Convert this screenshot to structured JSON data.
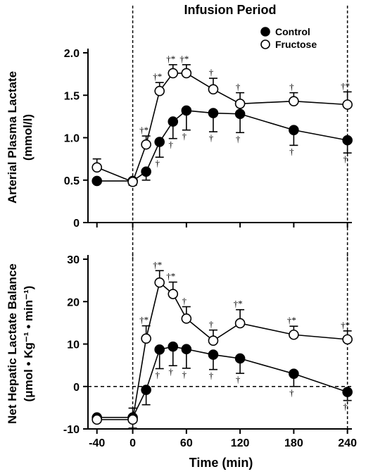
{
  "chart_data": [
    {
      "type": "line",
      "title": "Infusion Period",
      "xlabel": "",
      "ylabel": [
        "Arterial Plasma Lactate",
        "(mmol/l)"
      ],
      "xlim": [
        -50,
        245
      ],
      "ylim": [
        0,
        2.0
      ],
      "xticks": [
        -40,
        0,
        60,
        120,
        180,
        240
      ],
      "yticks": [
        0,
        0.5,
        1.0,
        1.5,
        2.0
      ],
      "ytick_labels": [
        "0",
        "0.5",
        "1.0",
        "1.5",
        "2.0"
      ],
      "grid": false,
      "legend_position": "top-right",
      "vlines": [
        0,
        240
      ],
      "series": [
        {
          "name": "Control",
          "marker": "filled-circle",
          "color": "#000000",
          "points": [
            {
              "x": -40,
              "y": 0.49
            },
            {
              "x": 0,
              "y": 0.49,
              "err_down": 0.05
            },
            {
              "x": 15,
              "y": 0.6,
              "err_down": 0.1
            },
            {
              "x": 30,
              "y": 0.95,
              "err_down": 0.18,
              "sig": "†"
            },
            {
              "x": 45,
              "y": 1.19,
              "err_down": 0.2,
              "sig": "†"
            },
            {
              "x": 60,
              "y": 1.32,
              "err_down": 0.23,
              "sig": "†"
            },
            {
              "x": 90,
              "y": 1.29,
              "err_down": 0.22,
              "sig": "†"
            },
            {
              "x": 120,
              "y": 1.28,
              "err_down": 0.22,
              "sig": "†"
            },
            {
              "x": 180,
              "y": 1.09,
              "err_down": 0.18,
              "sig": "†"
            },
            {
              "x": 240,
              "y": 0.97,
              "err_down": 0.15,
              "sig": "†"
            }
          ]
        },
        {
          "name": "Fructose",
          "marker": "open-circle",
          "color": "#000000",
          "points": [
            {
              "x": -40,
              "y": 0.65,
              "err_up": 0.1
            },
            {
              "x": 0,
              "y": 0.48
            },
            {
              "x": 15,
              "y": 0.92,
              "err_up": 0.1,
              "sig": "†*"
            },
            {
              "x": 30,
              "y": 1.55,
              "err_up": 0.1,
              "sig": "†*"
            },
            {
              "x": 45,
              "y": 1.76,
              "err_up": 0.1,
              "sig": "†*"
            },
            {
              "x": 60,
              "y": 1.76,
              "err_up": 0.1,
              "sig": "†*"
            },
            {
              "x": 90,
              "y": 1.57,
              "err_up": 0.13,
              "sig": "†"
            },
            {
              "x": 120,
              "y": 1.4,
              "err_up": 0.13,
              "sig": "†"
            },
            {
              "x": 180,
              "y": 1.43,
              "err_up": 0.1,
              "sig": "†"
            },
            {
              "x": 240,
              "y": 1.39,
              "err_up": 0.15,
              "sig": "†*"
            }
          ]
        }
      ]
    },
    {
      "type": "line",
      "title": "",
      "xlabel": "Time (min)",
      "ylabel": [
        "Net Hepatic Lactate Balance",
        "(μmol • Kg⁻¹ • min⁻¹)"
      ],
      "xlim": [
        -50,
        245
      ],
      "ylim": [
        -10,
        30
      ],
      "xticks": [
        -40,
        0,
        60,
        120,
        180,
        240
      ],
      "xtick_labels": [
        "-40",
        "0",
        "60",
        "120",
        "180",
        "240"
      ],
      "yticks": [
        -10,
        0,
        10,
        20,
        30
      ],
      "ytick_labels": [
        "-10",
        "0",
        "10",
        "20",
        "30"
      ],
      "grid": false,
      "hlines": [
        0
      ],
      "vlines": [
        0,
        240
      ],
      "series": [
        {
          "name": "Control",
          "marker": "filled-circle",
          "color": "#000000",
          "points": [
            {
              "x": -40,
              "y": -7.3
            },
            {
              "x": 0,
              "y": -7.3,
              "err_up": 2.2
            },
            {
              "x": 15,
              "y": -0.8,
              "err_down": 3.5
            },
            {
              "x": 30,
              "y": 8.7,
              "err_down": 4.5,
              "sig": "†"
            },
            {
              "x": 45,
              "y": 9.4,
              "err_down": 4.5,
              "sig": "†"
            },
            {
              "x": 60,
              "y": 8.8,
              "err_down": 4.5,
              "sig": "†"
            },
            {
              "x": 90,
              "y": 7.5,
              "err_down": 3.5,
              "sig": "†"
            },
            {
              "x": 120,
              "y": 6.6,
              "err_down": 3.5,
              "sig": "†"
            },
            {
              "x": 180,
              "y": 3.0,
              "err_down": 3.0,
              "sig": "†"
            },
            {
              "x": 240,
              "y": -1.3,
              "err_down": 2.0,
              "sig": "†"
            }
          ]
        },
        {
          "name": "Fructose",
          "marker": "open-circle",
          "color": "#000000",
          "points": [
            {
              "x": -40,
              "y": -7.8
            },
            {
              "x": 0,
              "y": -7.8,
              "err_down": 2.0
            },
            {
              "x": 15,
              "y": 11.3,
              "err_up": 3.0,
              "sig": "†*"
            },
            {
              "x": 30,
              "y": 24.5,
              "err_up": 2.8,
              "sig": "†*"
            },
            {
              "x": 45,
              "y": 21.8,
              "err_up": 2.8,
              "sig": "†*"
            },
            {
              "x": 60,
              "y": 16.0,
              "err_up": 2.8,
              "sig": "†"
            },
            {
              "x": 90,
              "y": 10.8,
              "err_up": 2.5,
              "sig": "†"
            },
            {
              "x": 120,
              "y": 14.9,
              "err_up": 3.2,
              "sig": "†*"
            },
            {
              "x": 180,
              "y": 12.2,
              "err_up": 2.0,
              "sig": "†*"
            },
            {
              "x": 240,
              "y": 11.1,
              "err_up": 2.0,
              "sig": "†*"
            }
          ]
        }
      ]
    }
  ]
}
